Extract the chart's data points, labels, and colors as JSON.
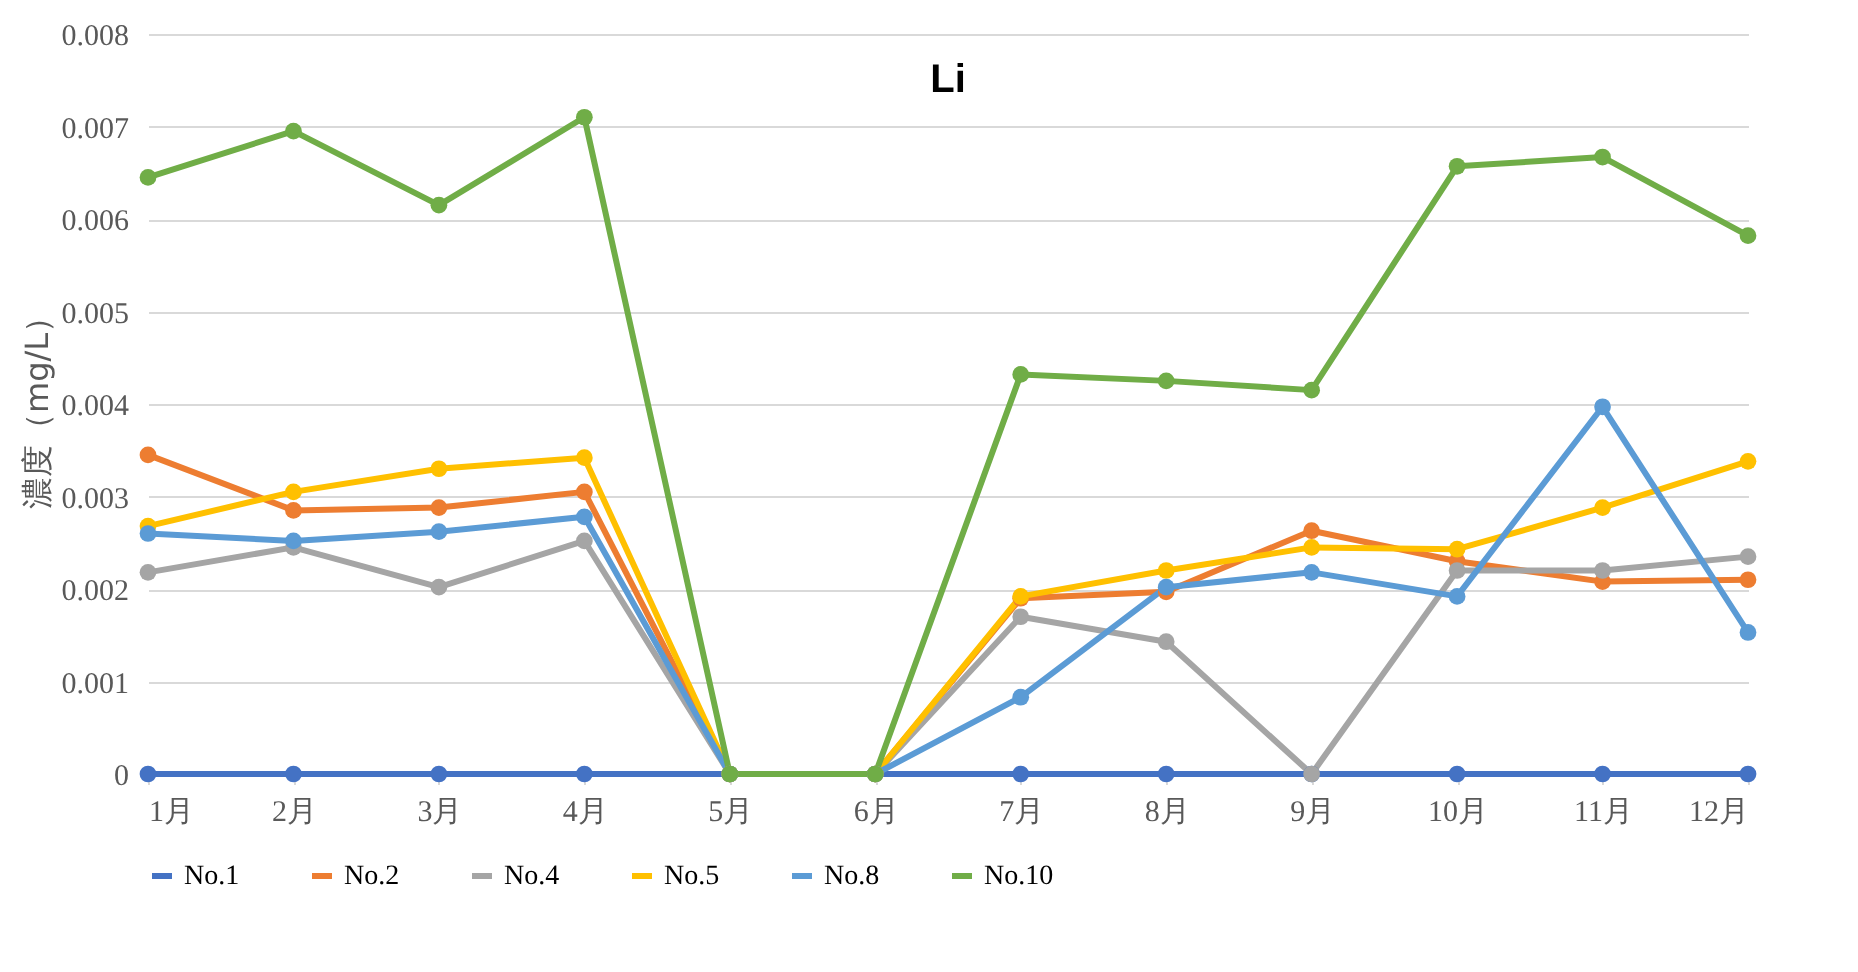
{
  "chart_data": {
    "type": "line",
    "title": "Li",
    "ylabel": "濃度（mg/L）",
    "categories": [
      "1月",
      "2月",
      "3月",
      "4月",
      "5月",
      "6月",
      "7月",
      "8月",
      "9月",
      "10月",
      "11月",
      "12月"
    ],
    "series": [
      {
        "name": "No.1",
        "color": "#4472c4",
        "values": [
          0,
          0,
          0,
          0,
          0,
          0,
          0,
          0,
          0,
          0,
          0,
          0
        ]
      },
      {
        "name": "No.2",
        "color": "#ed7d31",
        "values": [
          0.00345,
          0.00285,
          0.00288,
          0.00305,
          0,
          0,
          0.0019,
          0.00197,
          0.00263,
          0.0023,
          0.00208,
          0.0021
        ]
      },
      {
        "name": "No.4",
        "color": "#a5a5a5",
        "values": [
          0.00218,
          0.00245,
          0.00202,
          0.00252,
          0,
          0,
          0.0017,
          0.00143,
          0,
          0.0022,
          0.0022,
          0.00235
        ]
      },
      {
        "name": "No.5",
        "color": "#ffc000",
        "values": [
          0.00268,
          0.00305,
          0.0033,
          0.00342,
          0,
          0,
          0.00192,
          0.0022,
          0.00245,
          0.00243,
          0.00288,
          0.00338
        ]
      },
      {
        "name": "No.8",
        "color": "#5b9bd5",
        "values": [
          0.0026,
          0.00252,
          0.00262,
          0.00278,
          0,
          0,
          0.00083,
          0.00202,
          0.00218,
          0.00192,
          0.00397,
          0.00153
        ]
      },
      {
        "name": "No.10",
        "color": "#70ad47",
        "values": [
          0.00645,
          0.00695,
          0.00615,
          0.0071,
          0,
          0,
          0.00432,
          0.00425,
          0.00415,
          0.00657,
          0.00667,
          0.00582
        ]
      }
    ],
    "ylim": [
      0,
      0.008
    ],
    "yticks": [
      0,
      0.001,
      0.002,
      0.003,
      0.004,
      0.005,
      0.006,
      0.007,
      0.008
    ],
    "grid": "y",
    "legend": "bottom",
    "marker": "circle",
    "line_style": "solid"
  }
}
